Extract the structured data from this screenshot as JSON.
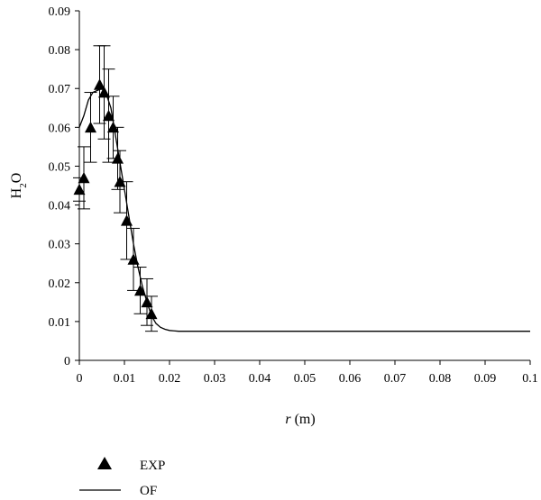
{
  "chart_data": {
    "type": "scatter",
    "xlabel_italic": "r",
    "xlabel_unit": " (m)",
    "ylabel_main": "H",
    "ylabel_sub": "2",
    "ylabel_tail": "O",
    "xlim": [
      0,
      0.1
    ],
    "ylim": [
      0,
      0.09
    ],
    "x_ticks": [
      "0",
      "0.01",
      "0.02",
      "0.03",
      "0.04",
      "0.05",
      "0.06",
      "0.07",
      "0.08",
      "0.09",
      "0.1"
    ],
    "y_ticks": [
      "0",
      "0.01",
      "0.02",
      "0.03",
      "0.04",
      "0.05",
      "0.06",
      "0.07",
      "0.08",
      "0.09"
    ],
    "legend_placement": "bottom-left",
    "series": [
      {
        "name": "EXP",
        "kind": "markers-with-error-bars",
        "marker": "filled-triangle",
        "points": [
          {
            "x": 0.0,
            "y": 0.044,
            "err": 0.003
          },
          {
            "x": 0.001,
            "y": 0.047,
            "err": 0.008
          },
          {
            "x": 0.0025,
            "y": 0.06,
            "err": 0.009
          },
          {
            "x": 0.0045,
            "y": 0.071,
            "err": 0.01
          },
          {
            "x": 0.0055,
            "y": 0.069,
            "err": 0.012
          },
          {
            "x": 0.0065,
            "y": 0.063,
            "err": 0.012
          },
          {
            "x": 0.0075,
            "y": 0.06,
            "err": 0.008
          },
          {
            "x": 0.0085,
            "y": 0.052,
            "err": 0.008
          },
          {
            "x": 0.009,
            "y": 0.046,
            "err": 0.008
          },
          {
            "x": 0.0105,
            "y": 0.036,
            "err": 0.01
          },
          {
            "x": 0.012,
            "y": 0.026,
            "err": 0.008
          },
          {
            "x": 0.0135,
            "y": 0.018,
            "err": 0.006
          },
          {
            "x": 0.015,
            "y": 0.015,
            "err": 0.006
          },
          {
            "x": 0.016,
            "y": 0.012,
            "err": 0.0045
          }
        ]
      },
      {
        "name": "OF",
        "kind": "line",
        "x": [
          0.0,
          0.001,
          0.002,
          0.003,
          0.004,
          0.005,
          0.006,
          0.007,
          0.008,
          0.009,
          0.01,
          0.011,
          0.012,
          0.013,
          0.014,
          0.015,
          0.016,
          0.017,
          0.018,
          0.019,
          0.02,
          0.021,
          0.022,
          0.025,
          0.03,
          0.04,
          0.05,
          0.06,
          0.07,
          0.08,
          0.09,
          0.1
        ],
        "y": [
          0.06,
          0.063,
          0.067,
          0.069,
          0.0695,
          0.07,
          0.0685,
          0.065,
          0.058,
          0.051,
          0.044,
          0.037,
          0.03,
          0.024,
          0.019,
          0.015,
          0.0115,
          0.0095,
          0.0085,
          0.008,
          0.0077,
          0.0076,
          0.0075,
          0.0075,
          0.0075,
          0.0075,
          0.0075,
          0.0075,
          0.0075,
          0.0075,
          0.0075,
          0.0075
        ]
      }
    ]
  }
}
